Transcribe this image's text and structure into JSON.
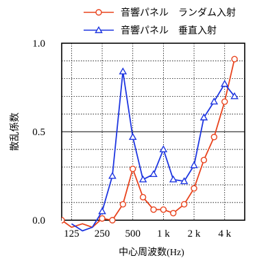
{
  "chart_data": {
    "type": "line",
    "title": "",
    "xlabel": "中心周波数(Hz)",
    "ylabel": "散乱係数",
    "x_scale": "log2",
    "x_range": [
      100,
      6300
    ],
    "ylim": [
      0,
      1
    ],
    "y_ticks": [
      "0.0",
      "0.5",
      "1.0"
    ],
    "y_tick_values": [
      0,
      0.5,
      1
    ],
    "x_ticks": [
      {
        "label": "125",
        "value": 125
      },
      {
        "label": "250",
        "value": 250
      },
      {
        "label": "500",
        "value": 500
      },
      {
        "label": "1 k",
        "value": 1000
      },
      {
        "label": "2 k",
        "value": 2000
      },
      {
        "label": "4 k",
        "value": 4000
      }
    ],
    "grid": true,
    "legend_position": "top",
    "x": [
      100,
      125,
      160,
      200,
      250,
      315,
      400,
      500,
      630,
      800,
      1000,
      1250,
      1600,
      2000,
      2500,
      3150,
      4000,
      5000
    ],
    "series": [
      {
        "name": "音響パネル　ランダム入射",
        "color": "#e8421c",
        "marker": "circle",
        "values": [
          0.0,
          -0.04,
          -0.02,
          -0.04,
          0.01,
          0.0,
          0.09,
          0.29,
          0.13,
          0.06,
          0.06,
          0.04,
          0.09,
          0.18,
          0.34,
          0.47,
          0.67,
          0.91
        ]
      },
      {
        "name": "音響パネル　垂直入射",
        "color": "#1d35e0",
        "marker": "triangle",
        "values": [
          null,
          -0.02,
          -0.06,
          -0.04,
          0.05,
          0.25,
          0.84,
          0.47,
          0.23,
          0.26,
          0.4,
          0.23,
          0.22,
          0.31,
          0.58,
          0.67,
          0.77,
          0.7
        ]
      }
    ]
  }
}
